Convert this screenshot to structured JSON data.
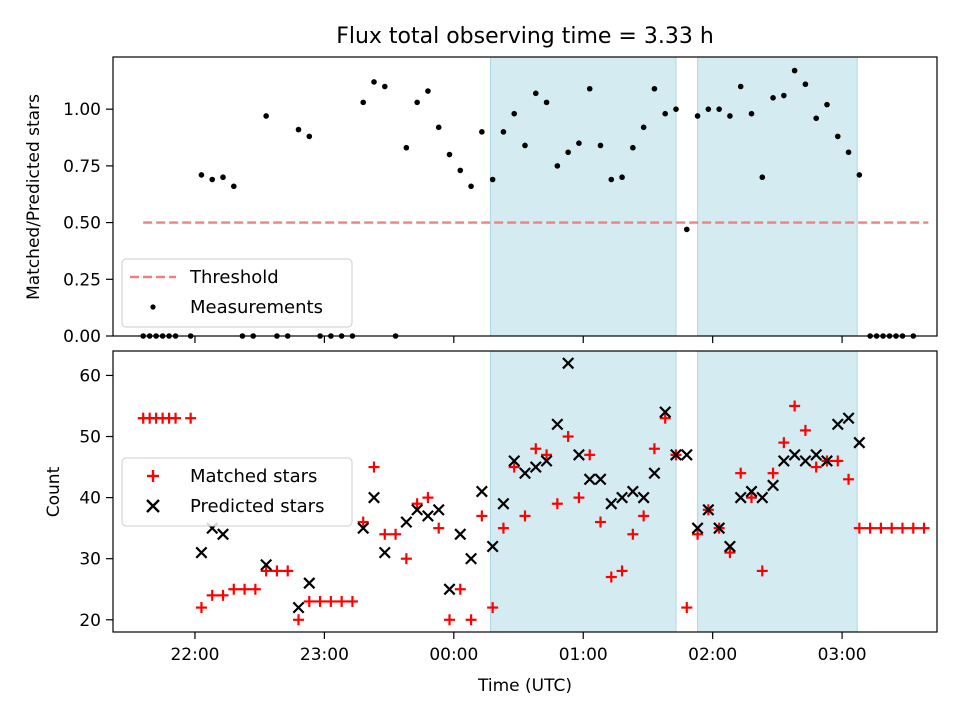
{
  "title": "Flux total observing time = 3.33 h",
  "colors": {
    "threshold": "#f08080",
    "measurements": "#000000",
    "matched": "#ff0000",
    "predicted": "#000000",
    "shade": "#add8e6"
  },
  "chart_data": [
    {
      "type": "scatter",
      "ylabel": "Matched/Predicted stars",
      "ylim": [
        0,
        1.23
      ],
      "yticks": [
        "0.00",
        "0.25",
        "0.50",
        "0.75",
        "1.00"
      ],
      "yticks_values": [
        0,
        0.25,
        0.5,
        0.75,
        1.0
      ],
      "xlim": [
        "21:22",
        "03:44"
      ],
      "shaded_intervals": [
        [
          "00:17",
          "01:43"
        ],
        [
          "01:53",
          "03:07"
        ]
      ],
      "threshold": {
        "name": "Threshold",
        "value": 0.5,
        "x_range": [
          "21:36",
          "03:40"
        ],
        "style": "dashed"
      },
      "legend": {
        "position": "lower left",
        "entries": [
          "Threshold",
          "Measurements"
        ]
      },
      "series": [
        {
          "name": "Measurements",
          "points": [
            [
              "21:36",
              0
            ],
            [
              "21:39",
              0
            ],
            [
              "21:42",
              0
            ],
            [
              "21:45",
              0
            ],
            [
              "21:48",
              0
            ],
            [
              "21:51",
              0
            ],
            [
              "21:58",
              0
            ],
            [
              "22:03",
              0.71
            ],
            [
              "22:08",
              0.69
            ],
            [
              "22:13",
              0.7
            ],
            [
              "22:18",
              0.66
            ],
            [
              "22:22",
              0
            ],
            [
              "22:27",
              0
            ],
            [
              "22:33",
              0.97
            ],
            [
              "22:38",
              0
            ],
            [
              "22:43",
              0
            ],
            [
              "22:48",
              0.91
            ],
            [
              "22:53",
              0.88
            ],
            [
              "22:58",
              0
            ],
            [
              "23:03",
              0
            ],
            [
              "23:08",
              0
            ],
            [
              "23:13",
              0
            ],
            [
              "23:18",
              1.03
            ],
            [
              "23:23",
              1.12
            ],
            [
              "23:28",
              1.1
            ],
            [
              "23:33",
              0
            ],
            [
              "23:38",
              0.83
            ],
            [
              "23:43",
              1.03
            ],
            [
              "23:48",
              1.08
            ],
            [
              "23:53",
              0.92
            ],
            [
              "23:58",
              0.8
            ],
            [
              "00:03",
              0.73
            ],
            [
              "00:08",
              0.66
            ],
            [
              "00:13",
              0.9
            ],
            [
              "00:18",
              0.69
            ],
            [
              "00:23",
              0.9
            ],
            [
              "00:28",
              0.98
            ],
            [
              "00:33",
              0.84
            ],
            [
              "00:38",
              1.07
            ],
            [
              "00:43",
              1.03
            ],
            [
              "00:48",
              0.75
            ],
            [
              "00:53",
              0.81
            ],
            [
              "00:58",
              0.85
            ],
            [
              "01:03",
              1.09
            ],
            [
              "01:08",
              0.84
            ],
            [
              "01:13",
              0.69
            ],
            [
              "01:18",
              0.7
            ],
            [
              "01:23",
              0.83
            ],
            [
              "01:28",
              0.92
            ],
            [
              "01:33",
              1.09
            ],
            [
              "01:38",
              0.98
            ],
            [
              "01:43",
              1.0
            ],
            [
              "01:48",
              0.47
            ],
            [
              "01:53",
              0.97
            ],
            [
              "01:58",
              1.0
            ],
            [
              "02:03",
              1.0
            ],
            [
              "02:08",
              0.97
            ],
            [
              "02:13",
              1.1
            ],
            [
              "02:18",
              0.98
            ],
            [
              "02:23",
              0.7
            ],
            [
              "02:28",
              1.05
            ],
            [
              "02:33",
              1.06
            ],
            [
              "02:38",
              1.17
            ],
            [
              "02:43",
              1.11
            ],
            [
              "02:48",
              0.96
            ],
            [
              "02:53",
              1.02
            ],
            [
              "02:58",
              0.88
            ],
            [
              "03:03",
              0.81
            ],
            [
              "03:08",
              0.71
            ],
            [
              "03:13",
              0
            ],
            [
              "03:16",
              0
            ],
            [
              "03:19",
              0
            ],
            [
              "03:22",
              0
            ],
            [
              "03:25",
              0
            ],
            [
              "03:28",
              0
            ],
            [
              "03:33",
              0
            ]
          ]
        }
      ]
    },
    {
      "type": "scatter",
      "xlabel": "Time (UTC)",
      "ylabel": "Count",
      "ylim": [
        18,
        64
      ],
      "yticks": [
        "20",
        "30",
        "40",
        "50",
        "60"
      ],
      "yticks_values": [
        20,
        30,
        40,
        50,
        60
      ],
      "xlim": [
        "21:22",
        "03:44"
      ],
      "xticks": [
        "22:00",
        "23:00",
        "00:00",
        "01:00",
        "02:00",
        "03:00"
      ],
      "shaded_intervals": [
        [
          "00:17",
          "01:43"
        ],
        [
          "01:53",
          "03:07"
        ]
      ],
      "legend": {
        "position": "center left",
        "entries": [
          "Matched stars",
          "Predicted stars"
        ]
      },
      "series": [
        {
          "name": "Matched stars",
          "marker": "plus",
          "points": [
            [
              "21:36",
              53
            ],
            [
              "21:39",
              53
            ],
            [
              "21:42",
              53
            ],
            [
              "21:45",
              53
            ],
            [
              "21:48",
              53
            ],
            [
              "21:51",
              53
            ],
            [
              "21:58",
              53
            ],
            [
              "22:03",
              22
            ],
            [
              "22:08",
              24
            ],
            [
              "22:13",
              24
            ],
            [
              "22:18",
              25
            ],
            [
              "22:23",
              25
            ],
            [
              "22:28",
              25
            ],
            [
              "22:33",
              28
            ],
            [
              "22:38",
              28
            ],
            [
              "22:43",
              28
            ],
            [
              "22:48",
              20
            ],
            [
              "22:53",
              23
            ],
            [
              "22:58",
              23
            ],
            [
              "23:03",
              23
            ],
            [
              "23:08",
              23
            ],
            [
              "23:13",
              23
            ],
            [
              "23:18",
              36
            ],
            [
              "23:23",
              45
            ],
            [
              "23:28",
              34
            ],
            [
              "23:33",
              34
            ],
            [
              "23:38",
              30
            ],
            [
              "23:43",
              39
            ],
            [
              "23:48",
              40
            ],
            [
              "23:53",
              35
            ],
            [
              "23:58",
              20
            ],
            [
              "00:03",
              25
            ],
            [
              "00:08",
              20
            ],
            [
              "00:13",
              37
            ],
            [
              "00:18",
              22
            ],
            [
              "00:23",
              35
            ],
            [
              "00:28",
              45
            ],
            [
              "00:33",
              37
            ],
            [
              "00:38",
              48
            ],
            [
              "00:43",
              47
            ],
            [
              "00:48",
              39
            ],
            [
              "00:53",
              50
            ],
            [
              "00:58",
              40
            ],
            [
              "01:03",
              47
            ],
            [
              "01:08",
              36
            ],
            [
              "01:13",
              27
            ],
            [
              "01:18",
              28
            ],
            [
              "01:23",
              34
            ],
            [
              "01:28",
              37
            ],
            [
              "01:33",
              48
            ],
            [
              "01:38",
              53
            ],
            [
              "01:43",
              47
            ],
            [
              "01:48",
              22
            ],
            [
              "01:53",
              34
            ],
            [
              "01:58",
              38
            ],
            [
              "02:03",
              35
            ],
            [
              "02:08",
              31
            ],
            [
              "02:13",
              44
            ],
            [
              "02:18",
              40
            ],
            [
              "02:23",
              28
            ],
            [
              "02:28",
              44
            ],
            [
              "02:33",
              49
            ],
            [
              "02:38",
              55
            ],
            [
              "02:43",
              51
            ],
            [
              "02:48",
              45
            ],
            [
              "02:53",
              46
            ],
            [
              "02:58",
              46
            ],
            [
              "03:03",
              43
            ],
            [
              "03:08",
              35
            ],
            [
              "03:13",
              35
            ],
            [
              "03:18",
              35
            ],
            [
              "03:23",
              35
            ],
            [
              "03:28",
              35
            ],
            [
              "03:33",
              35
            ],
            [
              "03:38",
              35
            ]
          ]
        },
        {
          "name": "Predicted stars",
          "marker": "x",
          "points": [
            [
              "22:03",
              31
            ],
            [
              "22:08",
              35
            ],
            [
              "22:13",
              34
            ],
            [
              "22:28",
              null
            ],
            [
              "22:33",
              29
            ],
            [
              "22:48",
              22
            ],
            [
              "22:53",
              26
            ],
            [
              "23:18",
              35
            ],
            [
              "23:23",
              40
            ],
            [
              "23:28",
              31
            ],
            [
              "23:38",
              36
            ],
            [
              "23:43",
              38
            ],
            [
              "23:48",
              37
            ],
            [
              "23:53",
              38
            ],
            [
              "23:58",
              25
            ],
            [
              "00:03",
              34
            ],
            [
              "00:08",
              30
            ],
            [
              "00:13",
              41
            ],
            [
              "00:18",
              32
            ],
            [
              "00:23",
              39
            ],
            [
              "00:28",
              46
            ],
            [
              "00:33",
              44
            ],
            [
              "00:38",
              45
            ],
            [
              "00:43",
              46
            ],
            [
              "00:48",
              52
            ],
            [
              "00:53",
              62
            ],
            [
              "00:58",
              47
            ],
            [
              "01:03",
              43
            ],
            [
              "01:08",
              43
            ],
            [
              "01:13",
              39
            ],
            [
              "01:18",
              40
            ],
            [
              "01:23",
              41
            ],
            [
              "01:28",
              40
            ],
            [
              "01:33",
              44
            ],
            [
              "01:38",
              54
            ],
            [
              "01:43",
              47
            ],
            [
              "01:48",
              47
            ],
            [
              "01:53",
              35
            ],
            [
              "01:58",
              38
            ],
            [
              "02:03",
              35
            ],
            [
              "02:08",
              32
            ],
            [
              "02:13",
              40
            ],
            [
              "02:18",
              41
            ],
            [
              "02:23",
              40
            ],
            [
              "02:28",
              42
            ],
            [
              "02:33",
              46
            ],
            [
              "02:38",
              47
            ],
            [
              "02:43",
              46
            ],
            [
              "02:48",
              47
            ],
            [
              "02:53",
              46
            ],
            [
              "02:58",
              52
            ],
            [
              "03:03",
              53
            ],
            [
              "03:08",
              49
            ]
          ]
        }
      ]
    }
  ]
}
